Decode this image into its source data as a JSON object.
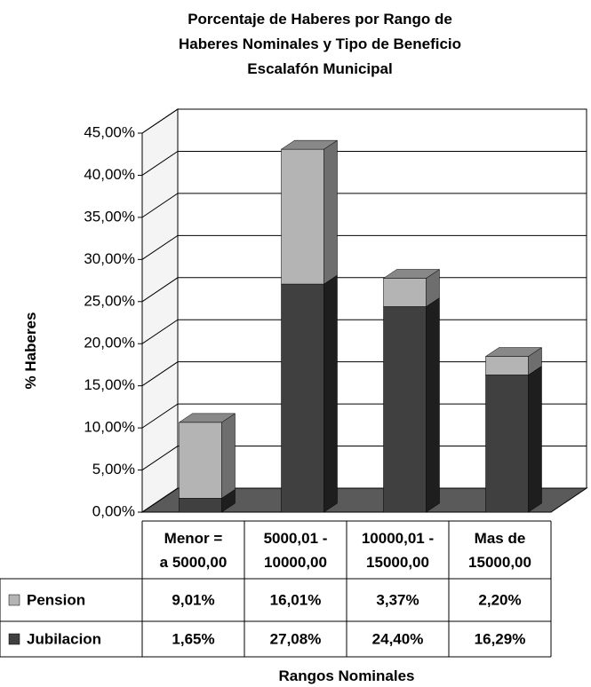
{
  "chart_data": {
    "type": "bar",
    "stacked": true,
    "three_d": true,
    "title": "Porcentaje de Haberes por Rango de\nHaberes Nominales y Tipo de Beneficio\nEscalafón Municipal",
    "y_label": "% Haberes",
    "x_label": "Rangos Nominales",
    "categories": [
      "Menor =\na 5000,00",
      "5000,01 -\n10000,00",
      "10000,01 -\n15000,00",
      "Mas de\n15000,00"
    ],
    "series": [
      {
        "name": "Pension",
        "color": "#b4b4b4",
        "values": [
          9.01,
          16.01,
          3.37,
          2.2
        ],
        "value_labels": [
          "9,01%",
          "16,01%",
          "3,37%",
          "2,20%"
        ]
      },
      {
        "name": "Jubilacion",
        "color": "#404040",
        "values": [
          1.65,
          27.08,
          24.4,
          16.29
        ],
        "value_labels": [
          "1,65%",
          "27,08%",
          "24,40%",
          "16,29%"
        ]
      }
    ],
    "ylim": [
      0,
      45
    ],
    "yticks": [
      {
        "value": 0,
        "label": "0,00%"
      },
      {
        "value": 5,
        "label": "5,00%"
      },
      {
        "value": 10,
        "label": "10,00%"
      },
      {
        "value": 15,
        "label": "15,00%"
      },
      {
        "value": 20,
        "label": "20,00%"
      },
      {
        "value": 25,
        "label": "25,00%"
      },
      {
        "value": 30,
        "label": "30,00%"
      },
      {
        "value": 35,
        "label": "35,00%"
      },
      {
        "value": 40,
        "label": "40,00%"
      },
      {
        "value": 45,
        "label": "45,00%"
      }
    ],
    "grid": true,
    "data_table": true
  }
}
